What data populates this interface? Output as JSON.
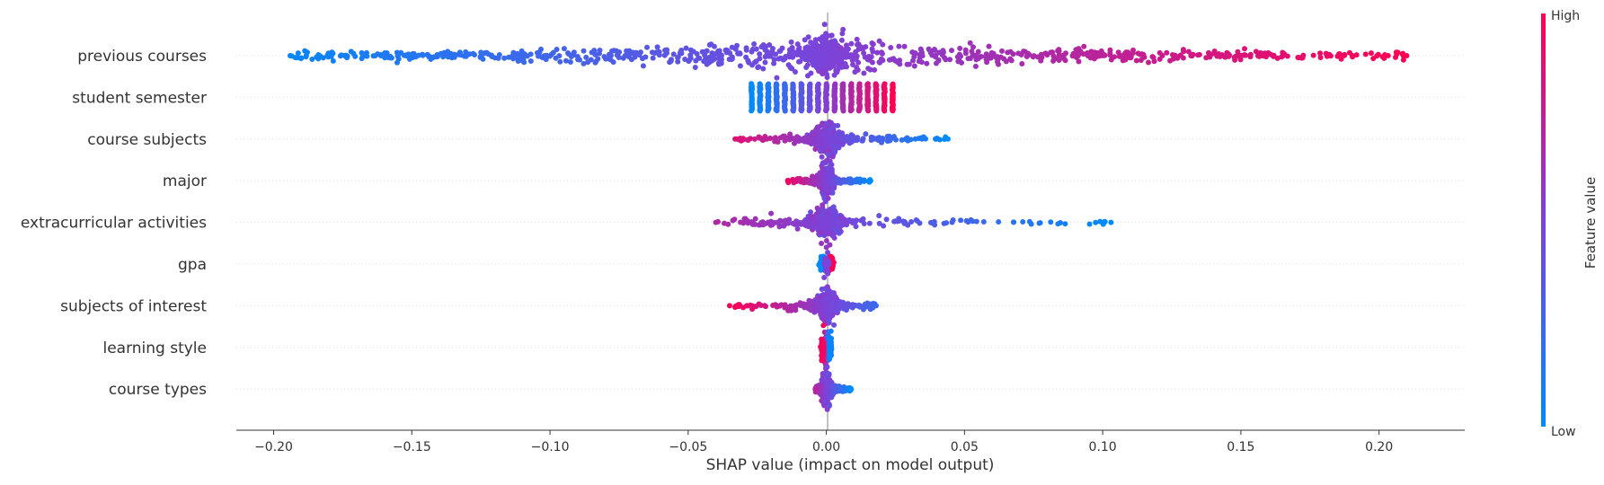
{
  "chart_data": {
    "type": "scatter",
    "subtype": "shap-beeswarm",
    "title": "",
    "xlabel": "SHAP value (impact on model output)",
    "ylabel": "",
    "xlim": [
      -0.2135,
      0.231
    ],
    "xticks": [
      -0.2,
      -0.15,
      -0.1,
      -0.05,
      0.0,
      0.05,
      0.1,
      0.15,
      0.2
    ],
    "xtick_labels": [
      "−0.20",
      "−0.15",
      "−0.10",
      "−0.05",
      "0.00",
      "0.05",
      "0.10",
      "0.15",
      "0.20"
    ],
    "grid": false,
    "colorbar": {
      "label": "Feature value",
      "high_label": "High",
      "low_label": "Low",
      "low_color": "#008bfb",
      "mid_color": "#7c43d9",
      "high_color": "#ff0052"
    },
    "features": [
      {
        "name": "previous courses",
        "kind": "wide",
        "min": -0.194,
        "max": 0.21,
        "direction": "positive"
      },
      {
        "name": "student semester",
        "kind": "discrete",
        "levels": [
          -0.027,
          -0.024,
          -0.021,
          -0.018,
          -0.015,
          -0.012,
          -0.009,
          -0.006,
          -0.003,
          0.0,
          0.003,
          0.006,
          0.009,
          0.012,
          0.015,
          0.018,
          0.021,
          0.024
        ]
      },
      {
        "name": "course subjects",
        "kind": "wide",
        "min": -0.033,
        "max": 0.044,
        "direction": "negative"
      },
      {
        "name": "major",
        "kind": "wide",
        "min": -0.014,
        "max": 0.016,
        "direction": "negative"
      },
      {
        "name": "extracurricular activities",
        "kind": "wide",
        "min": -0.04,
        "max": 0.103,
        "direction": "negative"
      },
      {
        "name": "gpa",
        "kind": "split",
        "low_value": -0.001,
        "high_value": 0.001
      },
      {
        "name": "subjects of interest",
        "kind": "wide",
        "min": -0.035,
        "max": 0.018,
        "direction": "negative"
      },
      {
        "name": "learning style",
        "kind": "narrow",
        "min": -0.001,
        "max": 0.001,
        "direction": "negative"
      },
      {
        "name": "course types",
        "kind": "wide",
        "min": -0.004,
        "max": 0.009,
        "direction": "negative"
      }
    ]
  }
}
